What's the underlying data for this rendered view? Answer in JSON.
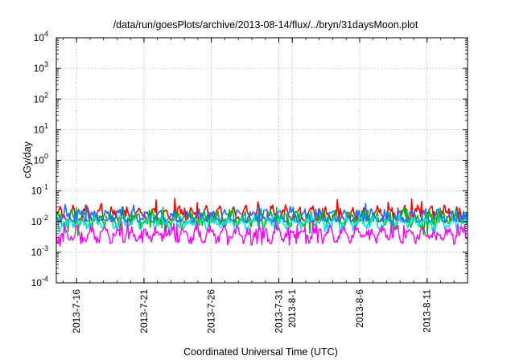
{
  "chart_data": {
    "type": "line",
    "title": "/data/run/goesPlots/archive/2013-08-14/flux/../bryn/31daysMoon.plot",
    "xlabel": "Coordinated Universal Time (UTC)",
    "ylabel": "cGy/day",
    "yscale": "log",
    "ylim": [
      0.0001,
      10000
    ],
    "xlim": [
      "2013-07-14T12:00",
      "2013-08-14T00:00"
    ],
    "grid": true,
    "y_ticks": [
      {
        "value": 0.0001,
        "base": "10",
        "exp": "-4"
      },
      {
        "value": 0.001,
        "base": "10",
        "exp": "-3"
      },
      {
        "value": 0.01,
        "base": "10",
        "exp": "-2"
      },
      {
        "value": 0.1,
        "base": "10",
        "exp": "-1"
      },
      {
        "value": 1,
        "base": "10",
        "exp": "0"
      },
      {
        "value": 10,
        "base": "10",
        "exp": "1"
      },
      {
        "value": 100,
        "base": "10",
        "exp": "2"
      },
      {
        "value": 1000,
        "base": "10",
        "exp": "3"
      },
      {
        "value": 10000,
        "base": "10",
        "exp": "4"
      }
    ],
    "x_ticks": [
      {
        "date": "2013-07-16",
        "label": "2013-7-16"
      },
      {
        "date": "2013-07-21",
        "label": "2013-7-21"
      },
      {
        "date": "2013-07-26",
        "label": "2013-7-26"
      },
      {
        "date": "2013-07-31",
        "label": "2013-7-31"
      },
      {
        "date": "2013-08-01",
        "label": "2013-8-1"
      },
      {
        "date": "2013-08-06",
        "label": "2013-8-6"
      },
      {
        "date": "2013-08-11",
        "label": "2013-8-11"
      }
    ],
    "series": [
      {
        "color": "#ff0000",
        "base": 0.016,
        "min": 0.011,
        "max": 0.058
      },
      {
        "color": "#00c000",
        "base": 0.012,
        "min": 0.0035,
        "max": 0.03
      },
      {
        "color": "#00e5e5",
        "base": 0.009,
        "min": 0.004,
        "max": 0.02
      },
      {
        "color": "#1f6fff",
        "base": 0.014,
        "min": 0.01,
        "max": 0.04
      },
      {
        "color": "#ff00ff",
        "base": 0.0038,
        "min": 0.0016,
        "max": 0.011
      }
    ]
  }
}
